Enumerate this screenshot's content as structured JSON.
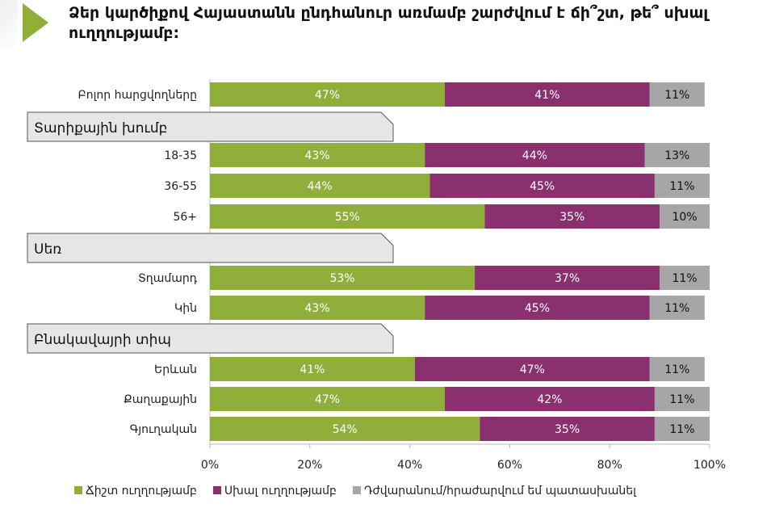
{
  "title": "Ձեր կարծիքով Հայաստանն ընդհանուր առմամբ շարժվում է ճի՞շտ, թե՞ սխալ ուղղությամբ:",
  "chart_data": {
    "type": "bar",
    "orientation": "horizontal-stacked",
    "title": "Ձեր կարծիքով Հայաստանն ընդհանուր առմամբ շարժվում է ճի՞շտ, թե՞ սխալ ուղղությամբ:",
    "xlim": [
      0,
      100
    ],
    "xticks": [
      "0%",
      "20%",
      "40%",
      "60%",
      "80%",
      "100%"
    ],
    "legend_position": "bottom",
    "series": [
      {
        "name": "Ճիշտ ուղղությամբ",
        "color": "#8fae3a"
      },
      {
        "name": "Սխալ ուղղությամբ",
        "color": "#8b306e"
      },
      {
        "name": "Դժվարանում/հրաժարվում եմ պատասխանել",
        "color": "#a6a6a6"
      }
    ],
    "rows": [
      {
        "label": "Բոլոր հարցվողները",
        "values": [
          47,
          41,
          11
        ]
      },
      {
        "section": "Տարիքային խումբ"
      },
      {
        "label": "18-35",
        "values": [
          43,
          44,
          13
        ]
      },
      {
        "label": "36-55",
        "values": [
          44,
          45,
          11
        ]
      },
      {
        "label": "56+",
        "values": [
          55,
          35,
          10
        ]
      },
      {
        "section": "Սեռ"
      },
      {
        "label": "Տղամարդ",
        "values": [
          53,
          37,
          11
        ]
      },
      {
        "label": "Կին",
        "values": [
          43,
          45,
          11
        ]
      },
      {
        "section": "Բնակավայրի տիպ"
      },
      {
        "label": "Երևան",
        "values": [
          41,
          47,
          11
        ]
      },
      {
        "label": "Քաղաքային",
        "values": [
          47,
          42,
          11
        ]
      },
      {
        "label": "Գյուղական",
        "values": [
          54,
          35,
          11
        ]
      }
    ]
  }
}
